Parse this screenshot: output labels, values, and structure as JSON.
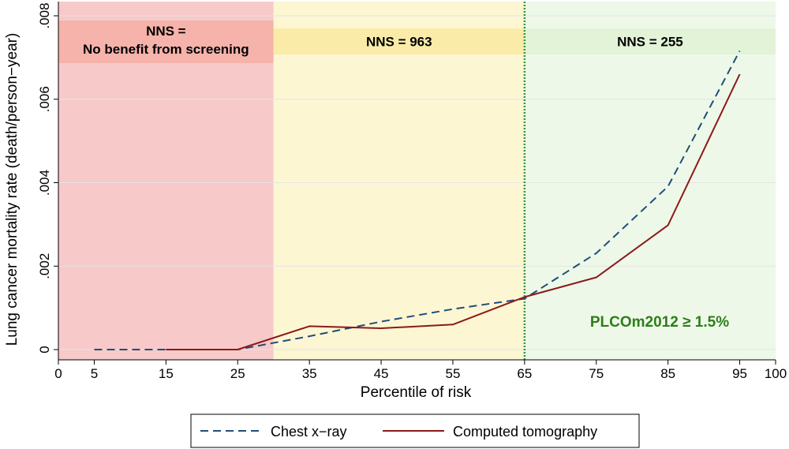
{
  "chart_data": {
    "type": "line",
    "title": "",
    "xlabel": "Percentile of risk",
    "ylabel": "Lung cancer mortality rate (death/person−year)",
    "xlim": [
      0,
      100
    ],
    "ylim": [
      0,
      0.008
    ],
    "x_ticks": [
      0,
      5,
      15,
      25,
      35,
      45,
      55,
      65,
      75,
      85,
      95,
      100
    ],
    "x_tick_labels": [
      "0",
      "5",
      "15",
      "25",
      "35",
      "45",
      "55",
      "65",
      "75",
      "85",
      "95",
      "100"
    ],
    "y_ticks": [
      0,
      0.002,
      0.004,
      0.006,
      0.008
    ],
    "y_tick_labels": [
      "0",
      ".002",
      ".004",
      ".006",
      ".008"
    ],
    "grid": "horizontal",
    "legend_position": "bottom",
    "series": [
      {
        "name": "Chest x−ray",
        "color": "#1f4e79",
        "style": "dashed",
        "x": [
          5,
          15,
          25,
          35,
          45,
          55,
          65,
          75,
          85,
          95
        ],
        "y": [
          0,
          0,
          0,
          0.00032,
          0.00067,
          0.00097,
          0.00122,
          0.00231,
          0.00391,
          0.00716
        ]
      },
      {
        "name": "Computed tomography",
        "color": "#8b1a1a",
        "style": "solid",
        "x": [
          15,
          25,
          35,
          45,
          55,
          65,
          75,
          85,
          95
        ],
        "y": [
          0,
          0,
          0.00056,
          0.00051,
          0.0006,
          0.00126,
          0.00173,
          0.00298,
          0.0066
        ]
      }
    ],
    "bands": [
      {
        "x0": 0,
        "x1": 30,
        "color": "#f7c9c9",
        "label_color": "#f5b3ab",
        "label_lines": [
          "NNS  =",
          "No benefit from screening"
        ]
      },
      {
        "x0": 30,
        "x1": 65,
        "color": "#fdf6d3",
        "label_color": "#faeca8",
        "label_lines": [
          "NNS  =  963"
        ]
      },
      {
        "x0": 65,
        "x1": 100,
        "color": "#eef8e8",
        "label_color": "#e2f3d8",
        "label_lines": [
          "NNS  =  255"
        ]
      }
    ],
    "threshold_x": 65,
    "threshold_color": "#2e9e3a",
    "annotations": [
      {
        "text": "PLCOm2012 ≥ 1.5%",
        "color": "#2e7d1a"
      }
    ]
  }
}
